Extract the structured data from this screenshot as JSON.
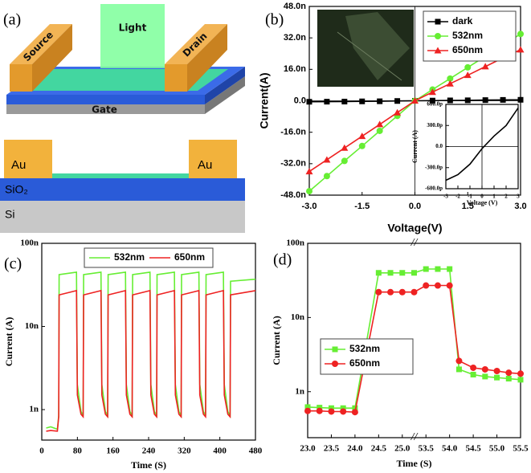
{
  "schematic": {
    "label": "(a)",
    "top_view": {
      "light": "Light",
      "source": "Source",
      "drain": "Drain",
      "gate": "Gate"
    },
    "cross_section": {
      "au_left": "Au",
      "au_right": "Au",
      "sio2": "SiO₂",
      "si": "Si"
    }
  },
  "chart_data": [
    {
      "type": "line",
      "label": "(b)",
      "xlabel": "Voltage(V)",
      "ylabel": "Current(A)",
      "legend": "upper right",
      "x": [
        -3,
        -2.5,
        -2,
        -1.5,
        -1,
        -0.5,
        0,
        0.5,
        1,
        1.5,
        2,
        2.5,
        3
      ],
      "xlim": [
        -3,
        3
      ],
      "xticks": [
        {
          "value": -3,
          "label": "-3.0"
        },
        {
          "value": -1.5,
          "label": "-1.5"
        },
        {
          "value": 0,
          "label": "0.0"
        },
        {
          "value": 1.5,
          "label": "1.5"
        },
        {
          "value": 3,
          "label": "3.0"
        }
      ],
      "ylim": [
        -48,
        48
      ],
      "yticks": [
        {
          "value": 48,
          "label": "48.0n"
        },
        {
          "value": 32,
          "label": "32.0n"
        },
        {
          "value": 16,
          "label": "16.0n"
        },
        {
          "value": 0,
          "label": "0.0"
        },
        {
          "value": -16,
          "label": "-16.0n"
        },
        {
          "value": -32,
          "label": "-32.0n"
        },
        {
          "value": -48,
          "label": "-48.0n"
        }
      ],
      "series": [
        {
          "name": "dark",
          "color": "#000000",
          "marker": "square",
          "values": [
            -0.5,
            -0.45,
            -0.4,
            -0.3,
            -0.25,
            -0.1,
            0,
            0.1,
            0.2,
            0.25,
            0.35,
            0.45,
            0.5
          ]
        },
        {
          "name": "532nm",
          "color": "#66ee33",
          "marker": "circle",
          "values": [
            -46,
            -38.3,
            -30.6,
            -23,
            -15.3,
            -7.7,
            0,
            5.7,
            11.3,
            17,
            22.6,
            28.3,
            34
          ]
        },
        {
          "name": "650nm",
          "color": "#ee2222",
          "marker": "triangle",
          "values": [
            -36,
            -30,
            -24,
            -18,
            -12,
            -6,
            0,
            4.4,
            8.7,
            13,
            17.4,
            21.8,
            26
          ]
        }
      ]
    },
    {
      "type": "line",
      "xlabel": "Voltage (V)",
      "ylabel": "Current (A)",
      "x": [
        -3,
        -2,
        -1,
        0,
        1,
        2,
        3
      ],
      "xlim": [
        -3,
        3
      ],
      "xticks": [
        -3,
        -2,
        -1,
        0,
        1,
        2,
        3
      ],
      "ylim": [
        -600,
        600
      ],
      "yticks": [
        {
          "value": 600,
          "label": "600.0p"
        },
        {
          "value": 300,
          "label": "300.0p"
        },
        {
          "value": 0,
          "label": "0.0"
        },
        {
          "value": -300,
          "label": "-300.0p"
        },
        {
          "value": -600,
          "label": "-600.0p"
        }
      ],
      "series": [
        {
          "color": "#000000",
          "values": [
            -480,
            -400,
            -250,
            -30,
            150,
            300,
            550
          ]
        }
      ]
    },
    {
      "type": "line",
      "label": "(c)",
      "xlabel": "Time (S)",
      "ylabel": "Current (A)",
      "legend": "upper center",
      "log_y": true,
      "x": [
        10,
        20,
        35,
        38,
        39,
        78,
        80,
        88,
        93,
        94,
        133,
        135,
        143,
        148,
        149,
        188,
        190,
        198,
        203,
        204,
        243,
        245,
        253,
        258,
        259,
        298,
        300,
        308,
        313,
        314,
        353,
        355,
        363,
        368,
        369,
        408,
        410,
        418,
        423,
        424,
        480
      ],
      "xlim": [
        0,
        480
      ],
      "xticks": [
        0,
        80,
        160,
        240,
        320,
        400,
        480
      ],
      "ylim": [
        0.43,
        100
      ],
      "yticks": [
        {
          "value": 1,
          "label": "1n"
        },
        {
          "value": 10,
          "label": "10n"
        },
        {
          "value": 100,
          "label": "100n"
        }
      ],
      "series": [
        {
          "name": "532nm",
          "color": "#66ee33",
          "values": [
            0.6,
            0.62,
            0.58,
            0.85,
            42,
            45,
            2,
            0.95,
            0.85,
            42,
            45,
            2,
            0.95,
            0.85,
            42,
            45,
            2,
            0.95,
            0.85,
            42,
            45,
            2,
            0.95,
            0.85,
            42,
            45,
            2,
            0.95,
            0.85,
            42,
            45,
            2,
            0.95,
            0.85,
            42,
            45,
            2,
            0.95,
            0.85,
            35,
            37
          ]
        },
        {
          "name": "650nm",
          "color": "#ee2222",
          "values": [
            0.55,
            0.56,
            0.55,
            0.82,
            24,
            27,
            1.5,
            0.88,
            0.82,
            24,
            27,
            1.5,
            0.88,
            0.82,
            24,
            27,
            1.5,
            0.88,
            0.82,
            24,
            27,
            1.5,
            0.88,
            0.82,
            24,
            27,
            1.5,
            0.88,
            0.82,
            24,
            27,
            1.5,
            0.88,
            0.82,
            24,
            27,
            1.5,
            0.88,
            0.82,
            24,
            27
          ]
        }
      ]
    },
    {
      "type": "line",
      "label": "(d)",
      "xlabel": "Time (S)",
      "ylabel": "Current (A)",
      "legend": "center left",
      "log_y": true,
      "x": [
        23,
        23.25,
        23.5,
        23.75,
        24,
        24.5,
        24.75,
        25,
        25.25,
        53.5,
        53.75,
        54,
        54.2,
        54.5,
        54.75,
        55,
        55.25,
        55.5
      ],
      "xlim": [
        23,
        55.5
      ],
      "xbreak": [
        25.25,
        53.25
      ],
      "xticks": [
        {
          "value": 23,
          "label": "23.0"
        },
        23.5,
        {
          "value": 24,
          "label": "24.0"
        },
        24.5,
        {
          "value": 25,
          "label": "25.0"
        },
        53.5,
        {
          "value": 54,
          "label": "54.0"
        },
        54.5,
        {
          "value": 55,
          "label": "55.0"
        },
        55.5
      ],
      "ylim": [
        0.24,
        100
      ],
      "yticks": [
        {
          "value": 1,
          "label": "1n"
        },
        {
          "value": 10,
          "label": "10n"
        },
        {
          "value": 100,
          "label": "100n"
        }
      ],
      "series": [
        {
          "name": "532nm",
          "color": "#66ee33",
          "marker": "square",
          "values": [
            0.62,
            0.61,
            0.6,
            0.6,
            0.6,
            40,
            40,
            40,
            40,
            45,
            45,
            45,
            2,
            1.7,
            1.6,
            1.55,
            1.5,
            1.45
          ]
        },
        {
          "name": "650nm",
          "color": "#ee2222",
          "marker": "circle",
          "values": [
            0.55,
            0.55,
            0.54,
            0.54,
            0.53,
            22,
            22,
            22,
            22,
            27,
            27,
            27,
            2.6,
            2.1,
            2,
            1.9,
            1.8,
            1.75
          ]
        }
      ]
    }
  ]
}
